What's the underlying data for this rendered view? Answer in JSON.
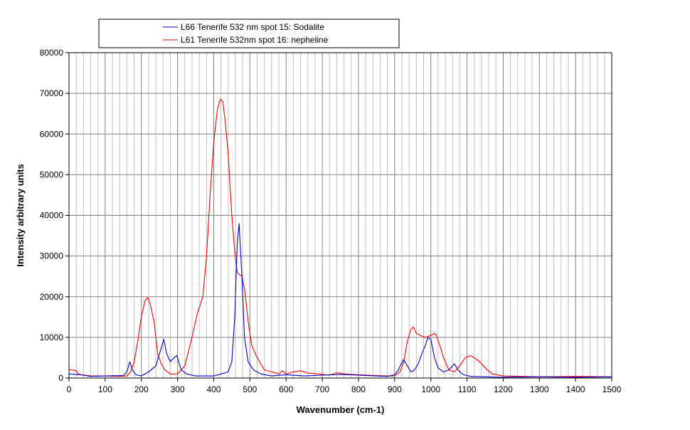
{
  "chart_data": {
    "type": "line",
    "title": "",
    "xlabel": "Wavenumber (cm-1)",
    "ylabel": "Intensity arbitrary units",
    "xlim": [
      0,
      1500
    ],
    "ylim": [
      0,
      80000
    ],
    "xticks": [
      "0",
      "100",
      "200",
      "300",
      "400",
      "500",
      "600",
      "700",
      "800",
      "900",
      "1000",
      "1100",
      "1200",
      "1300",
      "1400",
      "1500"
    ],
    "yticks": [
      "0",
      "10000",
      "20000",
      "30000",
      "40000",
      "50000",
      "60000",
      "70000",
      "80000"
    ],
    "grid": true,
    "minor_x_grid_step": 20,
    "legend_position": "top",
    "series": [
      {
        "name": "L66 Tenerife 532 nm spot 15: Sodalite",
        "color": "#0000cc",
        "x": [
          0,
          20,
          40,
          60,
          100,
          150,
          160,
          168,
          175,
          185,
          200,
          220,
          240,
          250,
          262,
          270,
          280,
          290,
          298,
          310,
          325,
          350,
          380,
          400,
          420,
          440,
          450,
          458,
          465,
          470,
          478,
          485,
          495,
          510,
          530,
          560,
          600,
          650,
          700,
          750,
          800,
          850,
          880,
          900,
          910,
          918,
          925,
          935,
          945,
          955,
          965,
          975,
          985,
          992,
          1000,
          1010,
          1020,
          1035,
          1050,
          1060,
          1065,
          1075,
          1090,
          1110,
          1150,
          1200,
          1300,
          1400,
          1500
        ],
        "values": [
          1000,
          900,
          700,
          400,
          500,
          600,
          1500,
          4000,
          2000,
          800,
          500,
          1500,
          3000,
          6000,
          9500,
          6000,
          4000,
          5000,
          5500,
          2000,
          1000,
          500,
          500,
          500,
          1000,
          1500,
          4000,
          15000,
          33000,
          38000,
          25000,
          10000,
          4000,
          2000,
          1000,
          500,
          800,
          500,
          700,
          900,
          700,
          500,
          400,
          800,
          2000,
          3500,
          4500,
          3000,
          1500,
          2000,
          3500,
          6000,
          8000,
          10000,
          9500,
          5000,
          2500,
          1500,
          2000,
          3000,
          3500,
          2000,
          800,
          400,
          300,
          200,
          300,
          200,
          300
        ]
      },
      {
        "name": "L61 Tenerife 532nm spot 16: nepheline",
        "color": "#ff0000",
        "x": [
          0,
          10,
          20,
          25,
          35,
          60,
          100,
          140,
          160,
          170,
          180,
          190,
          200,
          210,
          218,
          225,
          235,
          245,
          255,
          265,
          280,
          300,
          320,
          340,
          355,
          370,
          380,
          390,
          400,
          410,
          418,
          425,
          432,
          440,
          450,
          458,
          465,
          470,
          478,
          485,
          495,
          505,
          520,
          540,
          560,
          580,
          590,
          600,
          620,
          640,
          660,
          690,
          720,
          740,
          760,
          800,
          850,
          880,
          900,
          915,
          925,
          935,
          945,
          952,
          960,
          970,
          985,
          1000,
          1010,
          1015,
          1025,
          1035,
          1050,
          1065,
          1080,
          1095,
          1110,
          1120,
          1135,
          1150,
          1170,
          1200,
          1300,
          1400,
          1500
        ],
        "values": [
          2000,
          2000,
          1800,
          1000,
          800,
          500,
          500,
          400,
          500,
          1500,
          4000,
          9000,
          15000,
          19000,
          19800,
          18000,
          14000,
          6000,
          3500,
          2000,
          1000,
          1000,
          3000,
          10000,
          16000,
          20000,
          30000,
          45000,
          58000,
          66000,
          68500,
          68000,
          63000,
          55000,
          40000,
          31000,
          26000,
          25500,
          25000,
          22000,
          14000,
          8000,
          5000,
          2000,
          1500,
          1000,
          1800,
          1000,
          1500,
          1800,
          1200,
          1000,
          700,
          1300,
          1000,
          800,
          600,
          500,
          500,
          1500,
          4000,
          9000,
          12000,
          12500,
          11000,
          10500,
          10000,
          10500,
          11000,
          10500,
          8000,
          5000,
          2000,
          1500,
          3000,
          5000,
          5500,
          5000,
          4000,
          2500,
          1000,
          500,
          300,
          400,
          300
        ]
      }
    ]
  }
}
